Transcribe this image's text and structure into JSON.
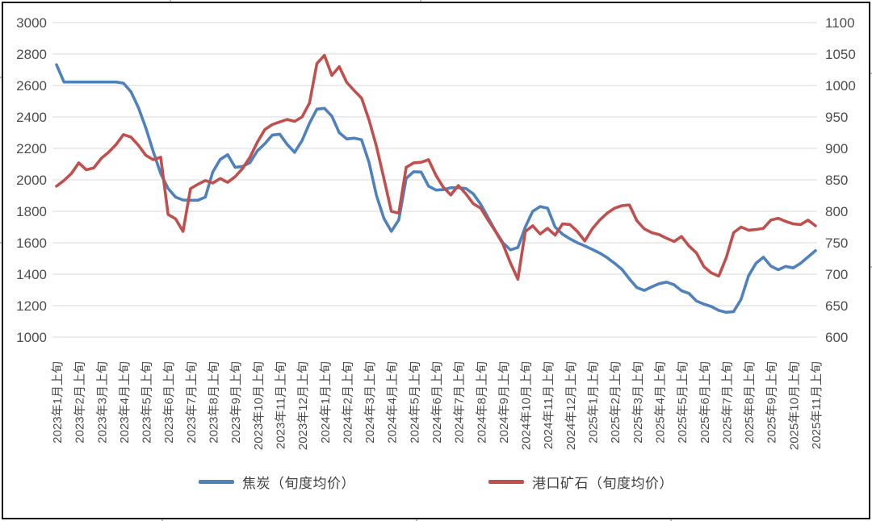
{
  "chart_data": {
    "type": "line",
    "title": "",
    "grid": true,
    "legend_position": "bottom",
    "points_per_month": 3,
    "x_axis": {
      "tick_labels": [
        "2023年1月上旬",
        "2023年2月上旬",
        "2023年3月上旬",
        "2023年4月上旬",
        "2023年5月上旬",
        "2023年6月上旬",
        "2023年7月上旬",
        "2023年8月上旬",
        "2023年9月上旬",
        "2023年10月上旬",
        "2023年11月上旬",
        "2023年12月上旬",
        "2024年1月上旬",
        "2024年2月上旬",
        "2024年3月上旬",
        "2024年4月上旬",
        "2024年5月上旬",
        "2024年6月上旬",
        "2024年7月上旬",
        "2024年8月上旬",
        "2024年9月上旬",
        "2024年10月上旬",
        "2024年11月上旬",
        "2024年12月上旬",
        "2025年1月上旬",
        "2025年2月上旬",
        "2025年3月上旬",
        "2025年4月上旬",
        "2025年5月上旬",
        "2025年6月上旬",
        "2025年7月上旬",
        "2025年8月上旬",
        "2025年9月上旬",
        "2025年10月上旬",
        "2025年11月上旬"
      ]
    },
    "left_axis": {
      "min": 1000,
      "max": 3000,
      "ticks": [
        3000,
        2800,
        2600,
        2400,
        2200,
        2000,
        1800,
        1600,
        1400,
        1200,
        1000
      ]
    },
    "right_axis": {
      "min": 600,
      "max": 1100,
      "ticks": [
        1100,
        1050,
        1000,
        950,
        900,
        850,
        800,
        750,
        700,
        650,
        600
      ]
    },
    "series": [
      {
        "name": "焦炭（旬度均价）",
        "axis": "left",
        "color": "#4F81BD",
        "values": [
          2732,
          2622,
          2622,
          2622,
          2622,
          2622,
          2622,
          2622,
          2622,
          2615,
          2560,
          2460,
          2330,
          2180,
          2040,
          1945,
          1890,
          1872,
          1870,
          1870,
          1890,
          2050,
          2130,
          2160,
          2080,
          2085,
          2110,
          2185,
          2230,
          2285,
          2290,
          2225,
          2175,
          2250,
          2360,
          2450,
          2455,
          2405,
          2300,
          2260,
          2265,
          2255,
          2110,
          1900,
          1755,
          1673,
          1745,
          2010,
          2052,
          2050,
          1960,
          1935,
          1938,
          1950,
          1950,
          1945,
          1912,
          1845,
          1760,
          1675,
          1600,
          1555,
          1570,
          1700,
          1800,
          1830,
          1820,
          1700,
          1655,
          1625,
          1600,
          1580,
          1558,
          1535,
          1505,
          1470,
          1430,
          1370,
          1315,
          1297,
          1320,
          1340,
          1350,
          1333,
          1295,
          1278,
          1230,
          1210,
          1195,
          1170,
          1158,
          1162,
          1240,
          1390,
          1470,
          1508,
          1452,
          1428,
          1450,
          1440,
          1470,
          1510,
          1550
        ]
      },
      {
        "name": "港口矿石（旬度均价）",
        "axis": "right",
        "color": "#C0504D",
        "values": [
          840,
          849,
          860,
          877,
          866,
          869,
          884,
          894,
          906,
          922,
          918,
          905,
          889,
          882,
          886,
          795,
          788,
          768,
          836,
          843,
          849,
          845,
          852,
          846,
          855,
          868,
          886,
          910,
          930,
          938,
          942,
          946,
          943,
          950,
          972,
          1035,
          1048,
          1016,
          1030,
          1005,
          992,
          980,
          945,
          903,
          852,
          800,
          797,
          870,
          877,
          878,
          882,
          857,
          838,
          826,
          841,
          828,
          812,
          805,
          786,
          768,
          748,
          718,
          692,
          768,
          777,
          764,
          773,
          762,
          780,
          779,
          768,
          753,
          772,
          786,
          797,
          805,
          809,
          810,
          785,
          772,
          766,
          763,
          757,
          752,
          760,
          745,
          734,
          712,
          702,
          697,
          726,
          766,
          775,
          770,
          771,
          773,
          786,
          789,
          784,
          780,
          779,
          786,
          777
        ]
      }
    ]
  },
  "legend": {
    "coke_label": "焦炭（旬度均价）",
    "ore_label": "港口矿石（旬度均价）"
  },
  "colors": {
    "coke_line": "#4F81BD",
    "ore_line": "#C0504D",
    "gridline": "#d9d9d9",
    "axis_text": "#4d4d4d",
    "frame_border": "#111111"
  }
}
